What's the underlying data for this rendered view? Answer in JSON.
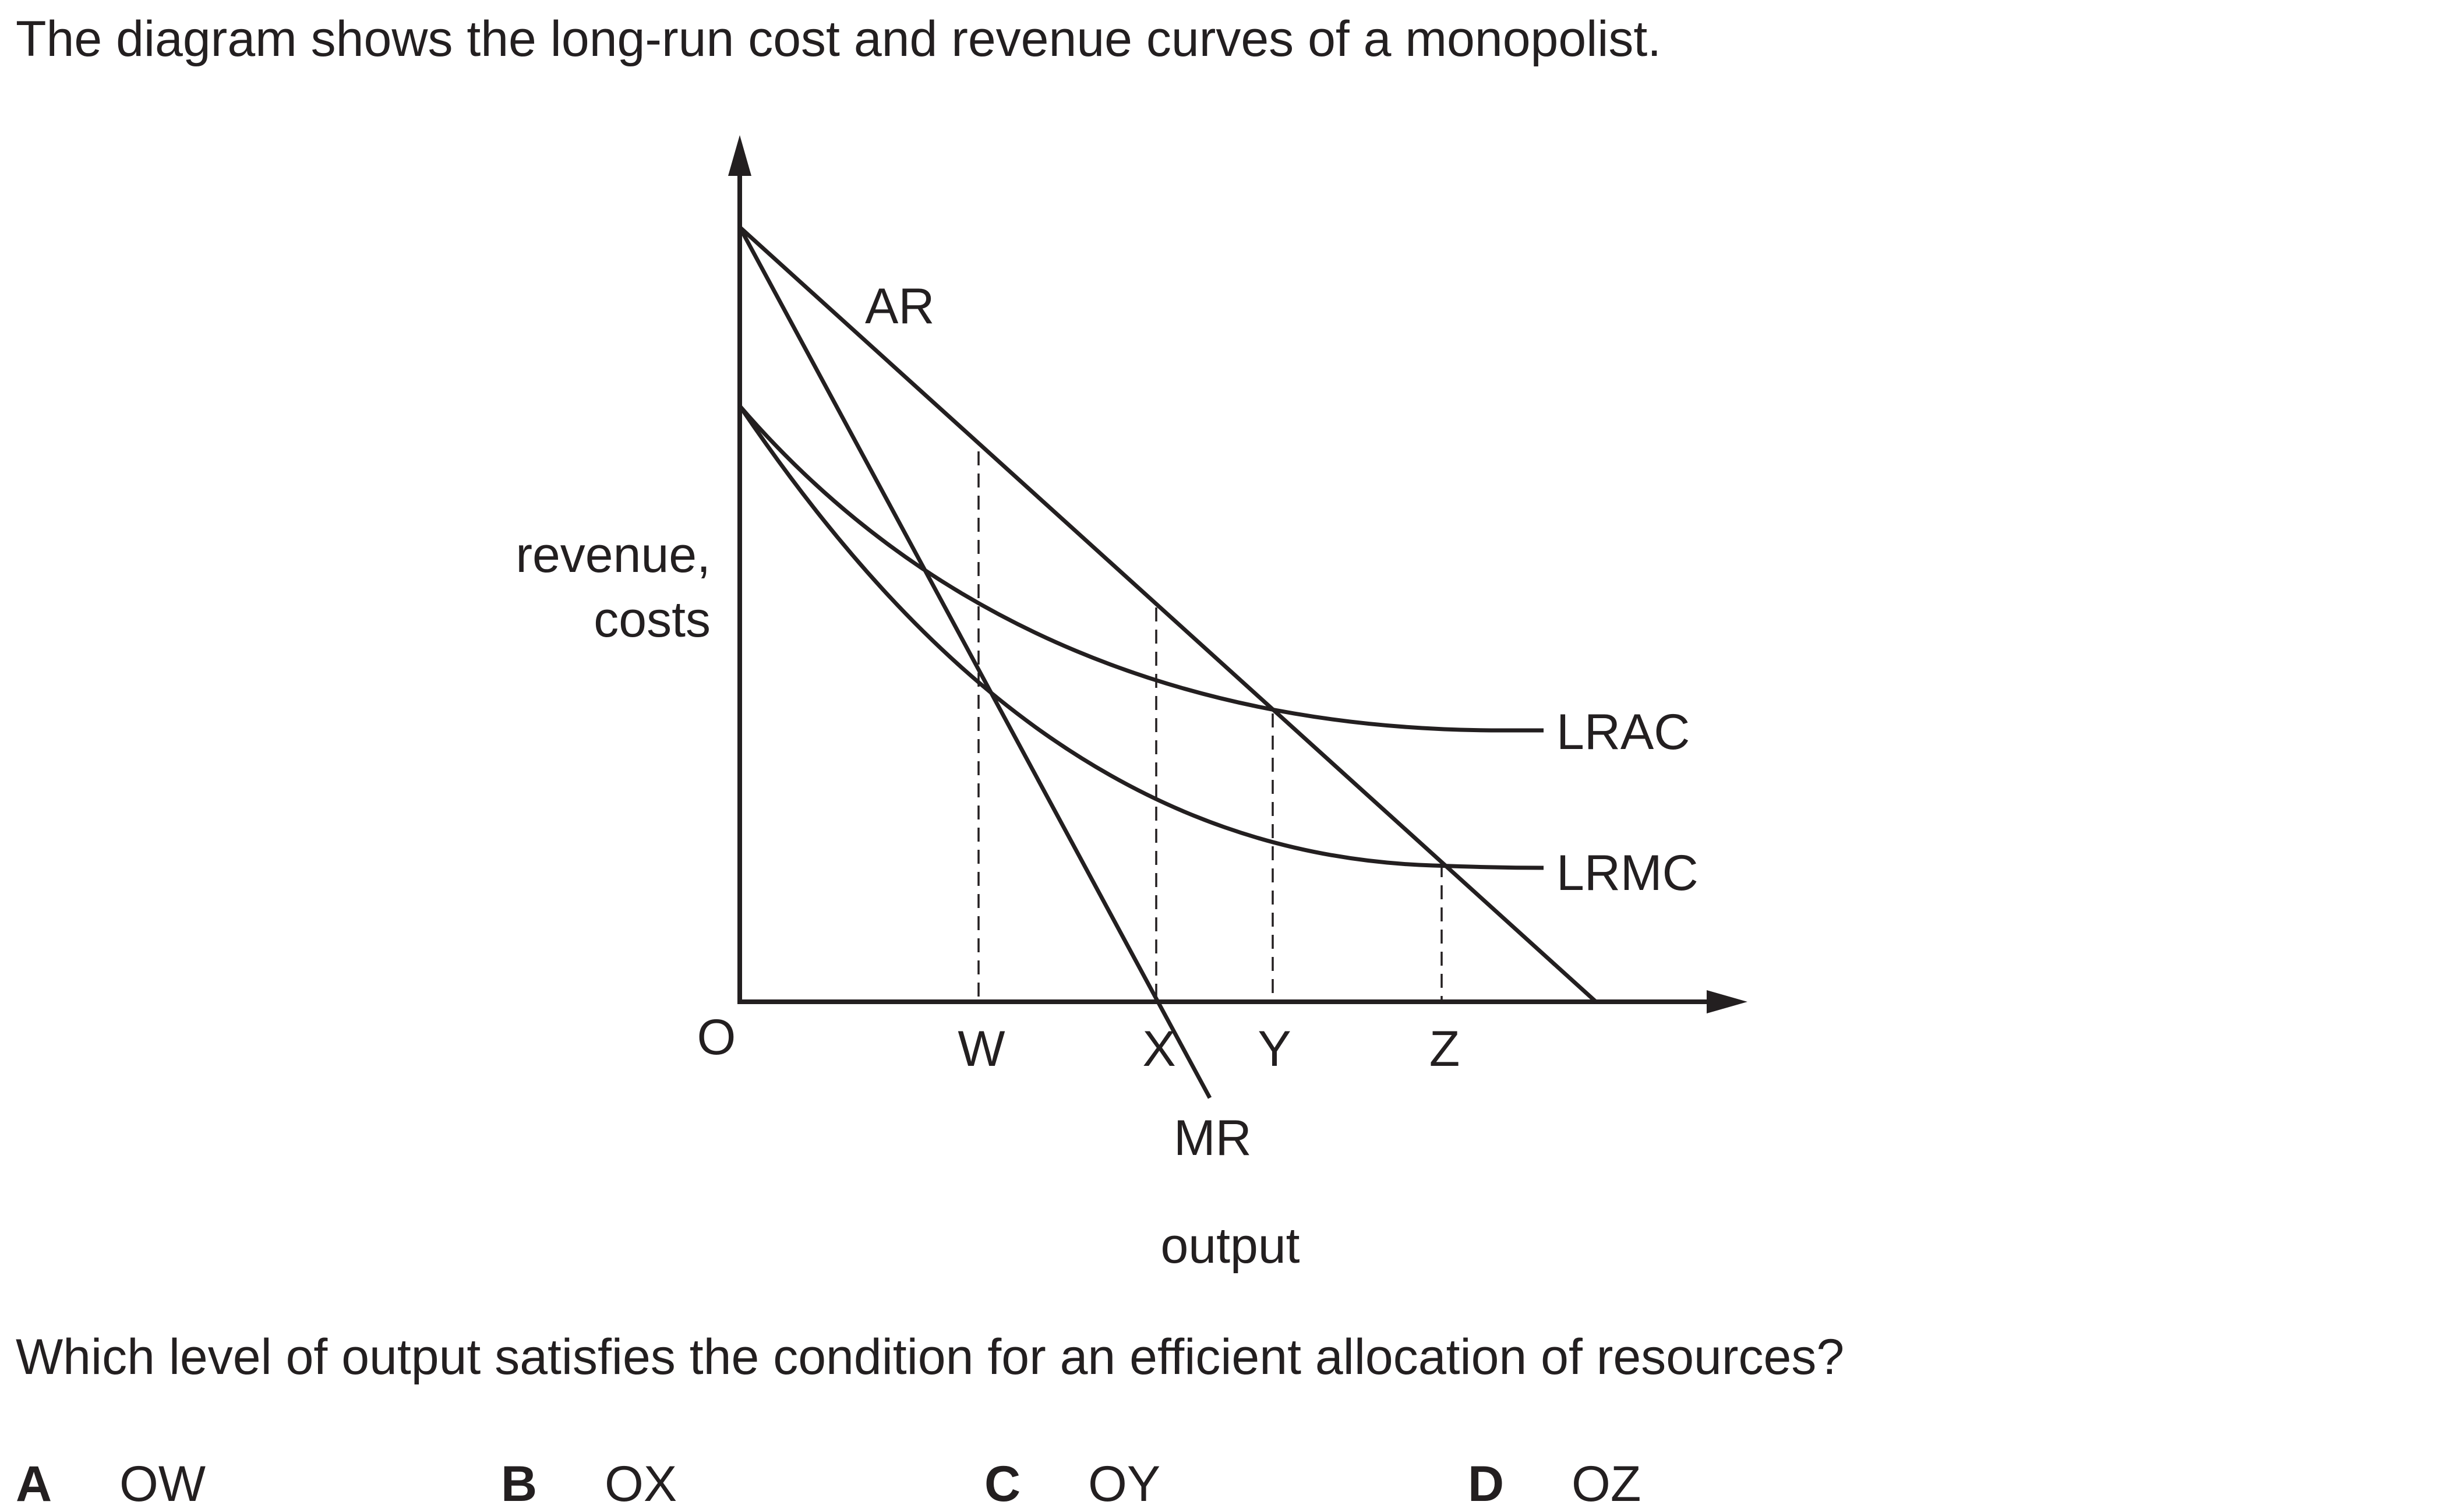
{
  "intro": "The diagram shows the long-run cost and revenue curves of a monopolist.",
  "diagram": {
    "y_axis_label_line1": "revenue,",
    "y_axis_label_line2": "costs",
    "x_axis_label": "output",
    "origin_label": "O",
    "curves": {
      "ar": "AR",
      "mr": "MR",
      "lrac": "LRAC",
      "lrmc": "LRMC"
    },
    "output_levels": {
      "w": "W",
      "x": "X",
      "y": "Y",
      "z": "Z"
    }
  },
  "question": "Which level of output satisfies the condition for an efficient allocation of resources?",
  "options": [
    {
      "letter": "A",
      "text": "OW"
    },
    {
      "letter": "B",
      "text": "OX"
    },
    {
      "letter": "C",
      "text": "OY"
    },
    {
      "letter": "D",
      "text": "OZ"
    }
  ],
  "colors": {
    "ink": "#231f20",
    "background": "#ffffff"
  }
}
